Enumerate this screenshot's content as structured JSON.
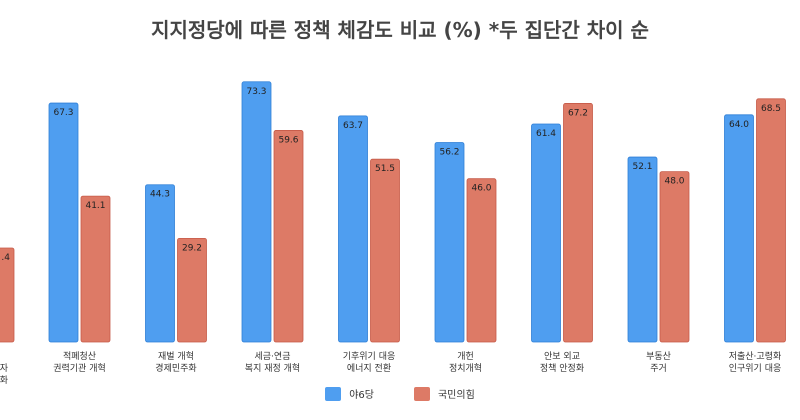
{
  "chart_data": {
    "type": "bar",
    "title": "지지정당에 따른 정책 체감도 비교 (%) *두 집단간 차이 순",
    "ylim": [
      0,
      80
    ],
    "grid": false,
    "legend_position": "bottom",
    "categories": [
      [
        "",
        "자",
        "화"
      ],
      [
        "적폐청산",
        "권력기관 개혁"
      ],
      [
        "재벌 개혁",
        "경제민주화"
      ],
      [
        "세금·연금",
        "복지 재정 개혁"
      ],
      [
        "기후위기 대응",
        "에너지 전환"
      ],
      [
        "개헌",
        "정치개혁"
      ],
      [
        "안보 외교",
        "정책 안정화"
      ],
      [
        "부동산",
        "주거"
      ],
      [
        "저출산·고령화",
        "인구위기 대응"
      ]
    ],
    "series": [
      {
        "name": "야6당",
        "color": "#4f9ef0",
        "values": [
          null,
          67.3,
          44.3,
          73.3,
          63.7,
          56.2,
          61.4,
          52.1,
          64.0
        ]
      },
      {
        "name": "국민의힘",
        "color": "#dd7a66",
        "values": [
          null,
          41.1,
          29.2,
          59.6,
          51.5,
          46.0,
          67.2,
          48.0,
          68.5
        ]
      }
    ],
    "partial_first_bar_label": ".4"
  }
}
